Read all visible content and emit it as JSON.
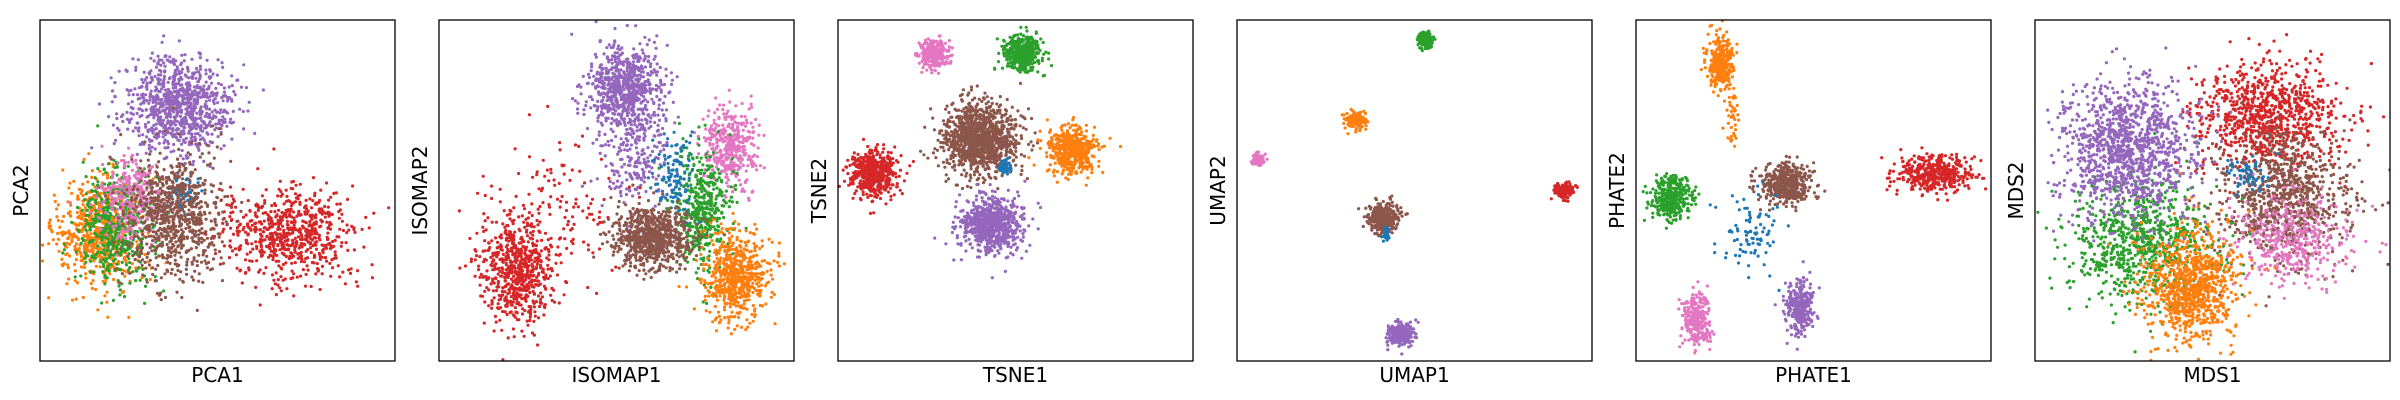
{
  "palette": {
    "blue": "#1f77b4",
    "orange": "#ff7f0e",
    "green": "#2ca02c",
    "red": "#d62728",
    "purple": "#9467bd",
    "brown": "#8c564b",
    "pink": "#e377c2"
  },
  "chart_data": [
    {
      "type": "scatter",
      "title": "",
      "xlabel": "PCA1",
      "ylabel": "PCA2",
      "xticks": [],
      "yticks": [],
      "grid": false,
      "legend": "none",
      "xlim": [
        0,
        100
      ],
      "ylim": [
        0,
        100
      ],
      "clusters": [
        {
          "color": "purple",
          "cx": 39,
          "cy": 75,
          "sx": 10,
          "sy": 9,
          "n": 900
        },
        {
          "color": "red",
          "cx": 70,
          "cy": 37,
          "sx": 12,
          "sy": 9,
          "n": 700
        },
        {
          "color": "orange",
          "cx": 17,
          "cy": 38,
          "sx": 8,
          "sy": 11,
          "n": 650
        },
        {
          "color": "green",
          "cx": 22,
          "cy": 40,
          "sx": 8,
          "sy": 11,
          "n": 500
        },
        {
          "color": "pink",
          "cx": 26,
          "cy": 48,
          "sx": 6,
          "sy": 8,
          "n": 300
        },
        {
          "color": "blue",
          "cx": 40,
          "cy": 50,
          "sx": 3,
          "sy": 3,
          "n": 60
        },
        {
          "color": "brown",
          "cx": 38,
          "cy": 42,
          "sx": 9,
          "sy": 12,
          "n": 800
        }
      ]
    },
    {
      "type": "scatter",
      "title": "",
      "xlabel": "ISOMAP1",
      "ylabel": "ISOMAP2",
      "xticks": [],
      "yticks": [],
      "grid": false,
      "legend": "none",
      "xlim": [
        0,
        100
      ],
      "ylim": [
        0,
        100
      ],
      "clusters": [
        {
          "color": "purple",
          "cx": 52,
          "cy": 80,
          "sx": 7,
          "sy": 8,
          "n": 700
        },
        {
          "color": "purple",
          "cx": 55,
          "cy": 62,
          "sx": 6,
          "sy": 12,
          "n": 250
        },
        {
          "color": "red",
          "cx": 22,
          "cy": 27,
          "sx": 7,
          "sy": 10,
          "n": 650
        },
        {
          "color": "red",
          "cx": 35,
          "cy": 45,
          "sx": 14,
          "sy": 14,
          "n": 120
        },
        {
          "color": "pink",
          "cx": 82,
          "cy": 62,
          "sx": 5,
          "sy": 8,
          "n": 400
        },
        {
          "color": "green",
          "cx": 74,
          "cy": 44,
          "sx": 5,
          "sy": 12,
          "n": 450
        },
        {
          "color": "orange",
          "cx": 84,
          "cy": 25,
          "sx": 6,
          "sy": 9,
          "n": 600
        },
        {
          "color": "blue",
          "cx": 66,
          "cy": 55,
          "sx": 4,
          "sy": 10,
          "n": 120
        },
        {
          "color": "brown",
          "cx": 60,
          "cy": 36,
          "sx": 7,
          "sy": 6,
          "n": 750
        }
      ]
    },
    {
      "type": "scatter",
      "title": "",
      "xlabel": "TSNE1",
      "ylabel": "TSNE2",
      "xticks": [],
      "yticks": [],
      "grid": false,
      "legend": "none",
      "xlim": [
        0,
        100
      ],
      "ylim": [
        0,
        100
      ],
      "clusters": [
        {
          "color": "pink",
          "cx": 27,
          "cy": 90,
          "sx": 2.8,
          "sy": 2.8,
          "n": 300
        },
        {
          "color": "green",
          "cx": 52,
          "cy": 90,
          "sx": 3.5,
          "sy": 3.5,
          "n": 450
        },
        {
          "color": "orange",
          "cx": 66,
          "cy": 62,
          "sx": 4.5,
          "sy": 4.5,
          "n": 500
        },
        {
          "color": "red",
          "cx": 10,
          "cy": 55,
          "sx": 4.5,
          "sy": 4.5,
          "n": 500
        },
        {
          "color": "brown",
          "cx": 40,
          "cy": 65,
          "sx": 7,
          "sy": 7,
          "n": 1200
        },
        {
          "color": "blue",
          "cx": 47,
          "cy": 57,
          "sx": 1,
          "sy": 1.5,
          "n": 60
        },
        {
          "color": "purple",
          "cx": 43,
          "cy": 40,
          "sx": 5.5,
          "sy": 5.5,
          "n": 800
        }
      ]
    },
    {
      "type": "scatter",
      "title": "",
      "xlabel": "UMAP1",
      "ylabel": "UMAP2",
      "xticks": [],
      "yticks": [],
      "grid": false,
      "legend": "none",
      "xlim": [
        0,
        100
      ],
      "ylim": [
        0,
        100
      ],
      "clusters": [
        {
          "color": "green",
          "cx": 53,
          "cy": 94,
          "sx": 1.5,
          "sy": 1.5,
          "n": 150
        },
        {
          "color": "orange",
          "cx": 34,
          "cy": 71,
          "sx": 1.8,
          "sy": 1.8,
          "n": 150
        },
        {
          "color": "pink",
          "cx": 6,
          "cy": 59,
          "sx": 1.2,
          "sy": 1.2,
          "n": 80
        },
        {
          "color": "red",
          "cx": 92,
          "cy": 50,
          "sx": 2,
          "sy": 1.5,
          "n": 150
        },
        {
          "color": "brown",
          "cx": 41,
          "cy": 42,
          "sx": 2.8,
          "sy": 2.8,
          "n": 350
        },
        {
          "color": "blue",
          "cx": 42,
          "cy": 37,
          "sx": 0.6,
          "sy": 1.5,
          "n": 40
        },
        {
          "color": "purple",
          "cx": 46,
          "cy": 8,
          "sx": 2.5,
          "sy": 2.2,
          "n": 250
        }
      ]
    },
    {
      "type": "scatter",
      "title": "",
      "xlabel": "PHATE1",
      "ylabel": "PHATE2",
      "xticks": [],
      "yticks": [],
      "grid": false,
      "legend": "none",
      "xlim": [
        0,
        100
      ],
      "ylim": [
        0,
        100
      ],
      "clusters": [
        {
          "color": "orange",
          "cx": 24,
          "cy": 87,
          "sx": 2.5,
          "sy": 5,
          "n": 300
        },
        {
          "color": "orange",
          "cx": 27,
          "cy": 73,
          "sx": 1.5,
          "sy": 6,
          "n": 40
        },
        {
          "color": "red",
          "cx": 84,
          "cy": 55,
          "sx": 7,
          "sy": 3.5,
          "n": 450
        },
        {
          "color": "green",
          "cx": 10,
          "cy": 48,
          "sx": 4,
          "sy": 4,
          "n": 350
        },
        {
          "color": "brown",
          "cx": 42,
          "cy": 52,
          "sx": 5,
          "sy": 4,
          "n": 450
        },
        {
          "color": "blue",
          "cx": 32,
          "cy": 38,
          "sx": 6,
          "sy": 8,
          "n": 90
        },
        {
          "color": "purple",
          "cx": 46,
          "cy": 16,
          "sx": 2.5,
          "sy": 5,
          "n": 300
        },
        {
          "color": "pink",
          "cx": 17,
          "cy": 12,
          "sx": 2.5,
          "sy": 5,
          "n": 300
        }
      ]
    },
    {
      "type": "scatter",
      "title": "",
      "xlabel": "MDS1",
      "ylabel": "MDS2",
      "xticks": [],
      "yticks": [],
      "grid": false,
      "legend": "none",
      "xlim": [
        0,
        100
      ],
      "ylim": [
        0,
        100
      ],
      "clusters": [
        {
          "color": "red",
          "cx": 66,
          "cy": 72,
          "sx": 13,
          "sy": 10,
          "n": 900
        },
        {
          "color": "brown",
          "cx": 70,
          "cy": 48,
          "sx": 13,
          "sy": 12,
          "n": 900
        },
        {
          "color": "pink",
          "cx": 72,
          "cy": 36,
          "sx": 11,
          "sy": 9,
          "n": 400
        },
        {
          "color": "green",
          "cx": 30,
          "cy": 34,
          "sx": 14,
          "sy": 12,
          "n": 800
        },
        {
          "color": "orange",
          "cx": 44,
          "cy": 22,
          "sx": 9,
          "sy": 11,
          "n": 900
        },
        {
          "color": "blue",
          "cx": 60,
          "cy": 55,
          "sx": 4,
          "sy": 4,
          "n": 60
        },
        {
          "color": "purple",
          "cx": 26,
          "cy": 62,
          "sx": 12,
          "sy": 13,
          "n": 1200
        }
      ]
    }
  ]
}
